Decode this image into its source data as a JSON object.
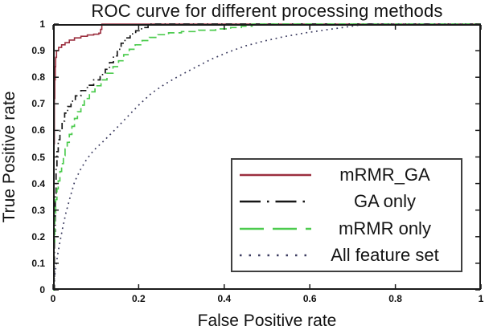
{
  "chart_data": {
    "type": "line",
    "title": "ROC curve for different processing methods",
    "xlabel": "False Positive rate",
    "ylabel": "True Positive rate",
    "xlim": [
      0,
      1
    ],
    "ylim": [
      0,
      1
    ],
    "grid": false,
    "legend_position": "lower-right-inside",
    "xticks": [
      0,
      0.2,
      0.4,
      0.6,
      0.8,
      1
    ],
    "xtick_labels": [
      "0",
      "0.2",
      "0.4",
      "0.6",
      "0.8",
      "1"
    ],
    "yticks": [
      0,
      0.1,
      0.2,
      0.3,
      0.4,
      0.5,
      0.6,
      0.7,
      0.8,
      0.9,
      1
    ],
    "ytick_labels": [
      "0",
      "0.1",
      "0.2",
      "0.3",
      "0.4",
      "0.5",
      "0.6",
      "0.7",
      "0.8",
      "0.9",
      "1"
    ],
    "series": [
      {
        "name": "mRMR_GA",
        "color": "#9b2e3e",
        "line_style": "solid",
        "line_shape": "step",
        "points": [
          [
            0,
            0
          ],
          [
            0.002,
            0.55
          ],
          [
            0.003,
            0.72
          ],
          [
            0.004,
            0.79
          ],
          [
            0.005,
            0.84
          ],
          [
            0.006,
            0.875
          ],
          [
            0.008,
            0.9
          ],
          [
            0.013,
            0.912
          ],
          [
            0.02,
            0.922
          ],
          [
            0.028,
            0.93
          ],
          [
            0.038,
            0.94
          ],
          [
            0.05,
            0.948
          ],
          [
            0.065,
            0.954
          ],
          [
            0.08,
            0.959
          ],
          [
            0.095,
            0.962
          ],
          [
            0.107,
            0.966
          ],
          [
            0.111,
            0.98
          ],
          [
            0.114,
            1
          ],
          [
            1,
            1
          ]
        ]
      },
      {
        "name": "GA only",
        "color": "#161616",
        "line_style": "dash-dot",
        "line_shape": "step",
        "points": [
          [
            0,
            0
          ],
          [
            0.003,
            0.22
          ],
          [
            0.005,
            0.36
          ],
          [
            0.007,
            0.46
          ],
          [
            0.009,
            0.52
          ],
          [
            0.012,
            0.565
          ],
          [
            0.016,
            0.6
          ],
          [
            0.021,
            0.635
          ],
          [
            0.027,
            0.665
          ],
          [
            0.034,
            0.69
          ],
          [
            0.042,
            0.71
          ],
          [
            0.052,
            0.73
          ],
          [
            0.065,
            0.75
          ],
          [
            0.08,
            0.77
          ],
          [
            0.095,
            0.79
          ],
          [
            0.11,
            0.81
          ],
          [
            0.122,
            0.83
          ],
          [
            0.132,
            0.855
          ],
          [
            0.141,
            0.88
          ],
          [
            0.15,
            0.905
          ],
          [
            0.159,
            0.928
          ],
          [
            0.168,
            0.948
          ],
          [
            0.18,
            0.963
          ],
          [
            0.193,
            0.975
          ],
          [
            0.207,
            0.987
          ],
          [
            0.222,
            1
          ],
          [
            1,
            1
          ]
        ]
      },
      {
        "name": "mRMR only",
        "color": "#4ccb4e",
        "line_style": "dashed",
        "line_shape": "step",
        "points": [
          [
            0,
            0
          ],
          [
            0.002,
            0.18
          ],
          [
            0.004,
            0.28
          ],
          [
            0.006,
            0.34
          ],
          [
            0.009,
            0.38
          ],
          [
            0.012,
            0.41
          ],
          [
            0.016,
            0.445
          ],
          [
            0.02,
            0.475
          ],
          [
            0.024,
            0.505
          ],
          [
            0.028,
            0.53
          ],
          [
            0.033,
            0.555
          ],
          [
            0.038,
            0.585
          ],
          [
            0.044,
            0.615
          ],
          [
            0.05,
            0.645
          ],
          [
            0.057,
            0.67
          ],
          [
            0.065,
            0.695
          ],
          [
            0.073,
            0.72
          ],
          [
            0.085,
            0.745
          ],
          [
            0.098,
            0.768
          ],
          [
            0.112,
            0.79
          ],
          [
            0.126,
            0.815
          ],
          [
            0.14,
            0.84
          ],
          [
            0.153,
            0.862
          ],
          [
            0.165,
            0.885
          ],
          [
            0.178,
            0.905
          ],
          [
            0.192,
            0.922
          ],
          [
            0.208,
            0.938
          ],
          [
            0.225,
            0.95
          ],
          [
            0.245,
            0.96
          ],
          [
            0.27,
            0.967
          ],
          [
            0.3,
            0.972
          ],
          [
            0.34,
            0.977
          ],
          [
            0.38,
            0.982
          ],
          [
            0.415,
            0.987
          ],
          [
            0.44,
            0.992
          ],
          [
            0.465,
            1
          ],
          [
            1,
            1
          ]
        ]
      },
      {
        "name": "All feature set",
        "color": "#3c3c60",
        "line_style": "dotted",
        "line_shape": "smooth",
        "points": [
          [
            0,
            0
          ],
          [
            0.005,
            0.07
          ],
          [
            0.01,
            0.125
          ],
          [
            0.016,
            0.18
          ],
          [
            0.022,
            0.23
          ],
          [
            0.03,
            0.29
          ],
          [
            0.04,
            0.35
          ],
          [
            0.05,
            0.405
          ],
          [
            0.063,
            0.45
          ],
          [
            0.078,
            0.49
          ],
          [
            0.095,
            0.525
          ],
          [
            0.115,
            0.555
          ],
          [
            0.14,
            0.595
          ],
          [
            0.17,
            0.645
          ],
          [
            0.2,
            0.695
          ],
          [
            0.23,
            0.74
          ],
          [
            0.262,
            0.775
          ],
          [
            0.295,
            0.805
          ],
          [
            0.33,
            0.835
          ],
          [
            0.37,
            0.868
          ],
          [
            0.41,
            0.895
          ],
          [
            0.45,
            0.918
          ],
          [
            0.49,
            0.935
          ],
          [
            0.54,
            0.953
          ],
          [
            0.59,
            0.967
          ],
          [
            0.64,
            0.979
          ],
          [
            0.69,
            0.99
          ],
          [
            0.73,
            1
          ],
          [
            1,
            1
          ]
        ]
      }
    ]
  },
  "colors": {
    "axis": "#1b1b1b",
    "background": "#ffffff",
    "legend_border": "#3f3f3f",
    "text": "#111111"
  }
}
